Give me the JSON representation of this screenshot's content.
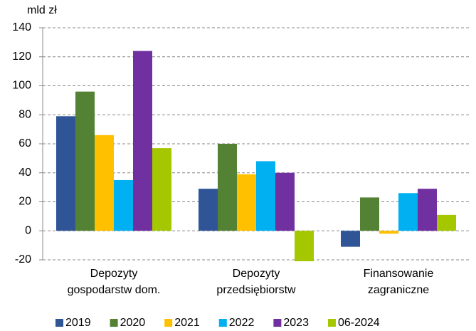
{
  "chart_data": {
    "type": "bar",
    "y_label": "mld zł",
    "categories": [
      [
        "Depozyty",
        "gospodarstw dom."
      ],
      [
        "Depozyty",
        "przedsiębiorstw"
      ],
      [
        "Finansowanie",
        "zagraniczne"
      ]
    ],
    "series": [
      {
        "name": "2019",
        "color": "#2f5597",
        "values": [
          79,
          29,
          -11
        ]
      },
      {
        "name": "2020",
        "color": "#548235",
        "values": [
          96,
          60,
          23
        ]
      },
      {
        "name": "2021",
        "color": "#ffc000",
        "values": [
          66,
          39,
          -2
        ]
      },
      {
        "name": "2022",
        "color": "#00b0f0",
        "values": [
          35,
          48,
          26
        ]
      },
      {
        "name": "2023",
        "color": "#7030a0",
        "values": [
          124,
          40,
          29
        ]
      },
      {
        "name": "06-2024",
        "color": "#a5c700",
        "values": [
          57,
          -21,
          11
        ]
      }
    ],
    "ylim": [
      -20,
      140
    ],
    "yticks": [
      -20,
      0,
      20,
      40,
      60,
      80,
      100,
      120,
      140
    ],
    "grid": true,
    "legend": "bottom"
  }
}
